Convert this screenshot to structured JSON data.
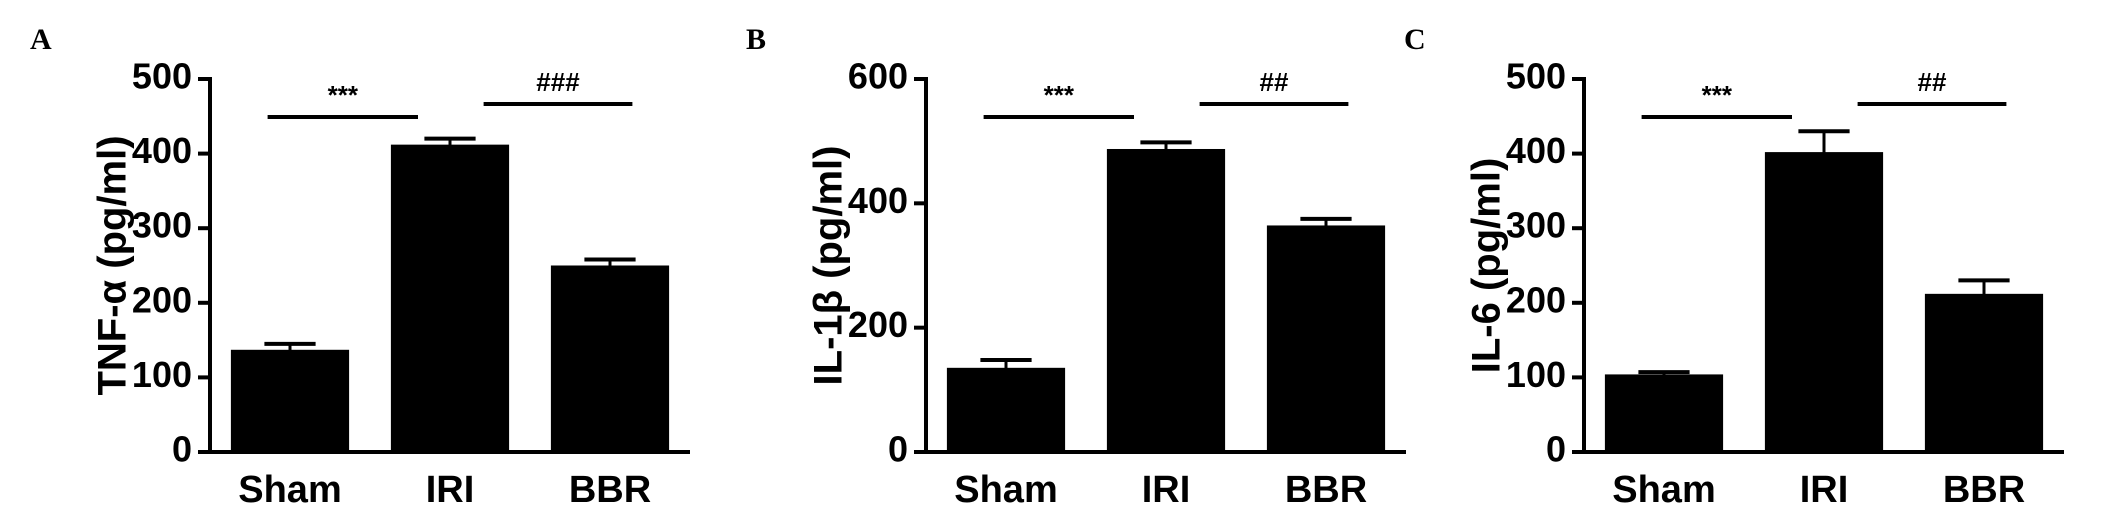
{
  "chart_data": [
    {
      "type": "bar",
      "panel": "A",
      "ylabel": "TNF-α (pg/ml)",
      "categories": [
        "Sham",
        "IRI",
        "BBR"
      ],
      "values": [
        135,
        410,
        248
      ],
      "errors": [
        10,
        10,
        10
      ],
      "color": "#000000",
      "ylim": [
        0,
        500
      ],
      "yticks": [
        0,
        100,
        200,
        300,
        400,
        500
      ],
      "annotations": [
        "***",
        "###"
      ]
    },
    {
      "type": "bar",
      "panel": "B",
      "ylabel": "IL-1β (pg/ml)",
      "categories": [
        "Sham",
        "IRI",
        "BBR"
      ],
      "values": [
        133,
        485,
        362
      ],
      "errors": [
        15,
        13,
        13
      ],
      "color": "#000000",
      "ylim": [
        0,
        600
      ],
      "yticks": [
        0,
        200,
        400,
        600
      ],
      "annotations": [
        "***",
        "##"
      ]
    },
    {
      "type": "bar",
      "panel": "C",
      "ylabel": "IL-6 (pg/ml)",
      "categories": [
        "Sham",
        "IRI",
        "BBR"
      ],
      "values": [
        102,
        400,
        210
      ],
      "errors": [
        5,
        30,
        20
      ],
      "color": "#000000",
      "ylim": [
        0,
        500
      ],
      "yticks": [
        0,
        100,
        200,
        300,
        400,
        500
      ],
      "annotations": [
        "***",
        "##"
      ]
    }
  ]
}
